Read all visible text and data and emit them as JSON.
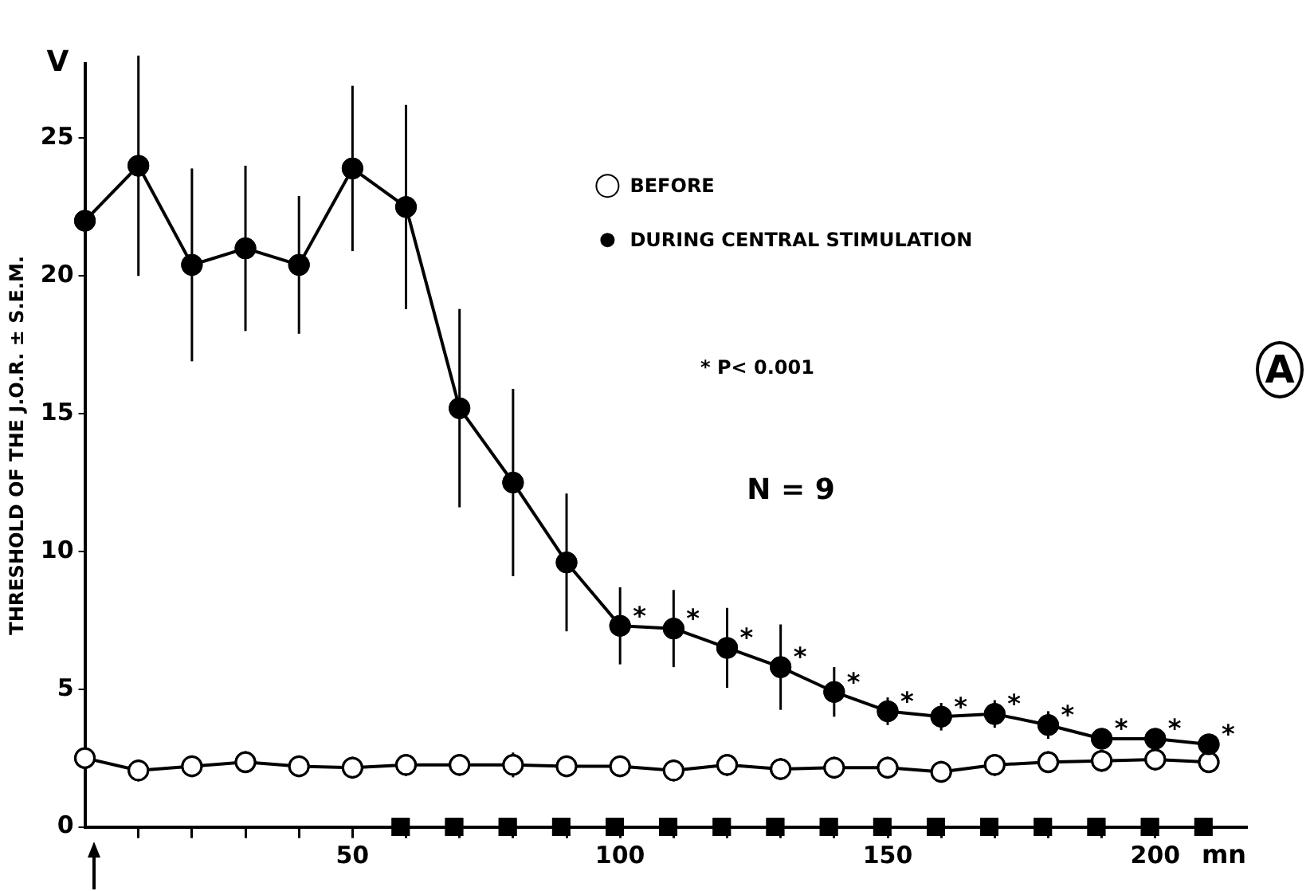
{
  "chart_data": {
    "type": "line",
    "xlabel": "mn",
    "ylabel": "THRESHOLD OF THE J.O.R. ± S.E.M.",
    "x": [
      0,
      10,
      20,
      30,
      40,
      50,
      60,
      70,
      80,
      90,
      100,
      110,
      120,
      130,
      140,
      150,
      160,
      170,
      180,
      190,
      200,
      210
    ],
    "series": [
      {
        "name": "BEFORE",
        "color": "#ffffff",
        "values": [
          2.5,
          2.05,
          2.2,
          2.35,
          2.2,
          2.15,
          2.25,
          2.25,
          2.25,
          2.2,
          2.2,
          2.05,
          2.25,
          2.1,
          2.15,
          2.15,
          2.0,
          2.25,
          2.35,
          2.4,
          2.45,
          2.35
        ],
        "errors": [
          0.3,
          0.4,
          0.4,
          0.4,
          0.4,
          0.4,
          0.4,
          0.4,
          0.45,
          0.4,
          0.4,
          0.4,
          0.4,
          0.4,
          0.4,
          0.4,
          0.4,
          0.4,
          0.4,
          0.4,
          0.4,
          0.4
        ]
      },
      {
        "name": "DURING CENTRAL STIMULATION",
        "color": "#000000",
        "values": [
          22,
          24,
          20.4,
          21,
          20.4,
          23.9,
          22.5,
          15.2,
          12.5,
          9.6,
          7.3,
          7.2,
          6.5,
          5.8,
          4.9,
          4.2,
          4.0,
          4.1,
          3.7,
          3.2,
          3.2,
          3.0
        ],
        "errors": [
          null,
          4,
          3.5,
          3,
          2.5,
          3,
          3.7,
          3.6,
          3.4,
          2.5,
          1.4,
          1.4,
          1.45,
          1.55,
          0.9,
          0.5,
          0.5,
          0.5,
          0.5,
          0.3,
          0.3,
          0.3
        ]
      },
      {
        "type": "scatter",
        "marker": "square",
        "color": "#000000",
        "x": [
          59,
          69,
          79,
          89,
          99,
          109,
          119,
          129,
          139,
          149,
          159,
          169,
          179,
          189,
          199,
          209
        ],
        "values": [
          0,
          0,
          0,
          0,
          0,
          0,
          0,
          0,
          0,
          0,
          0,
          0,
          0,
          0,
          0,
          0
        ]
      }
    ],
    "xlim": [
      0,
      217
    ],
    "xticks": [
      {
        "value": 10,
        "label": null
      },
      {
        "value": 20,
        "label": null
      },
      {
        "value": 30,
        "label": null
      },
      {
        "value": 40,
        "label": null
      },
      50,
      {
        "value": 60,
        "label": null
      },
      {
        "value": 70,
        "label": null
      },
      {
        "value": 80,
        "label": null
      },
      {
        "value": 90,
        "label": null
      },
      100,
      {
        "value": 110,
        "label": null
      },
      {
        "value": 120,
        "label": null
      },
      {
        "value": 130,
        "label": null
      },
      {
        "value": 140,
        "label": null
      },
      150,
      {
        "value": 160,
        "label": null
      },
      {
        "value": 170,
        "label": null
      },
      {
        "value": 180,
        "label": null
      },
      {
        "value": 190,
        "label": null
      },
      200
    ],
    "ylim": [
      0,
      27.7
    ],
    "yticks": [
      0,
      5,
      10,
      15,
      20,
      25
    ],
    "marker": "circle",
    "legend": "top right",
    "annotations": [
      "* P< 0.001",
      "N = 9",
      "A",
      "V",
      {
        "text": "*",
        "x": 100,
        "y": 7.3
      },
      {
        "text": "*",
        "x": 110,
        "y": 7.2
      },
      {
        "text": "*",
        "x": 120,
        "y": 6.5
      },
      {
        "text": "*",
        "x": 130,
        "y": 5.8
      },
      {
        "text": "*",
        "x": 140,
        "y": 4.9
      },
      {
        "text": "*",
        "x": 150,
        "y": 4.2
      },
      {
        "text": "*",
        "x": 160,
        "y": 4.0
      },
      {
        "text": "*",
        "x": 170,
        "y": 4.1
      },
      {
        "text": "*",
        "x": 180,
        "y": 3.7
      },
      {
        "text": "*",
        "x": 190,
        "y": 3.2
      },
      {
        "text": "*",
        "x": 200,
        "y": 3.2
      },
      {
        "text": "*",
        "x": 210,
        "y": 3.0
      }
    ]
  }
}
